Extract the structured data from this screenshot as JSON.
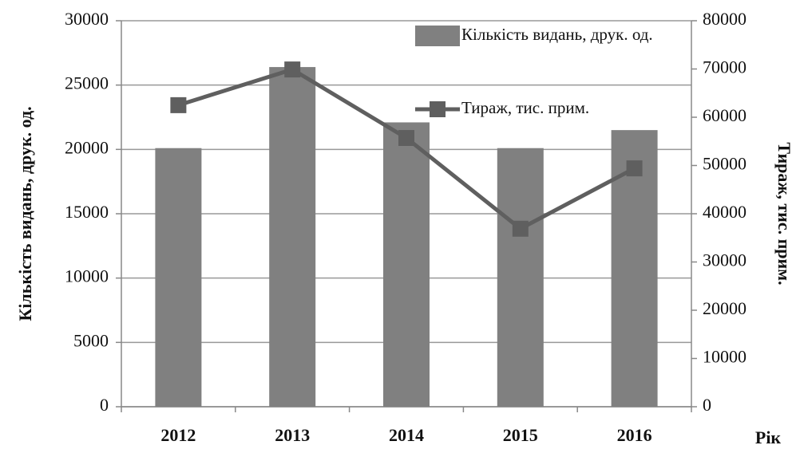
{
  "chart_data": {
    "type": "combo",
    "xlabel": "Рік",
    "ylabel": "Кількість видань, друк. од.",
    "y2label": "Тираж, тис. прим.",
    "categories": [
      "2012",
      "2013",
      "2014",
      "2015",
      "2016"
    ],
    "series": [
      {
        "name": "Кількість видань, друк. од.",
        "type": "bar",
        "color": "#808080",
        "values": [
          20100,
          26400,
          22100,
          20100,
          21500
        ]
      },
      {
        "name": "Тираж, тис. прим.",
        "type": "line",
        "axis": "y2",
        "color": "#5f5f5f",
        "values": [
          62500,
          69900,
          55700,
          36900,
          49400
        ]
      }
    ],
    "ylim": [
      0,
      30000
    ],
    "yticks": [
      0,
      5000,
      10000,
      15000,
      20000,
      25000,
      30000
    ],
    "y2lim": [
      0,
      80000
    ],
    "y2ticks": [
      0,
      10000,
      20000,
      30000,
      40000,
      50000,
      60000,
      70000,
      80000
    ],
    "grid": true,
    "legend": "top-right"
  }
}
